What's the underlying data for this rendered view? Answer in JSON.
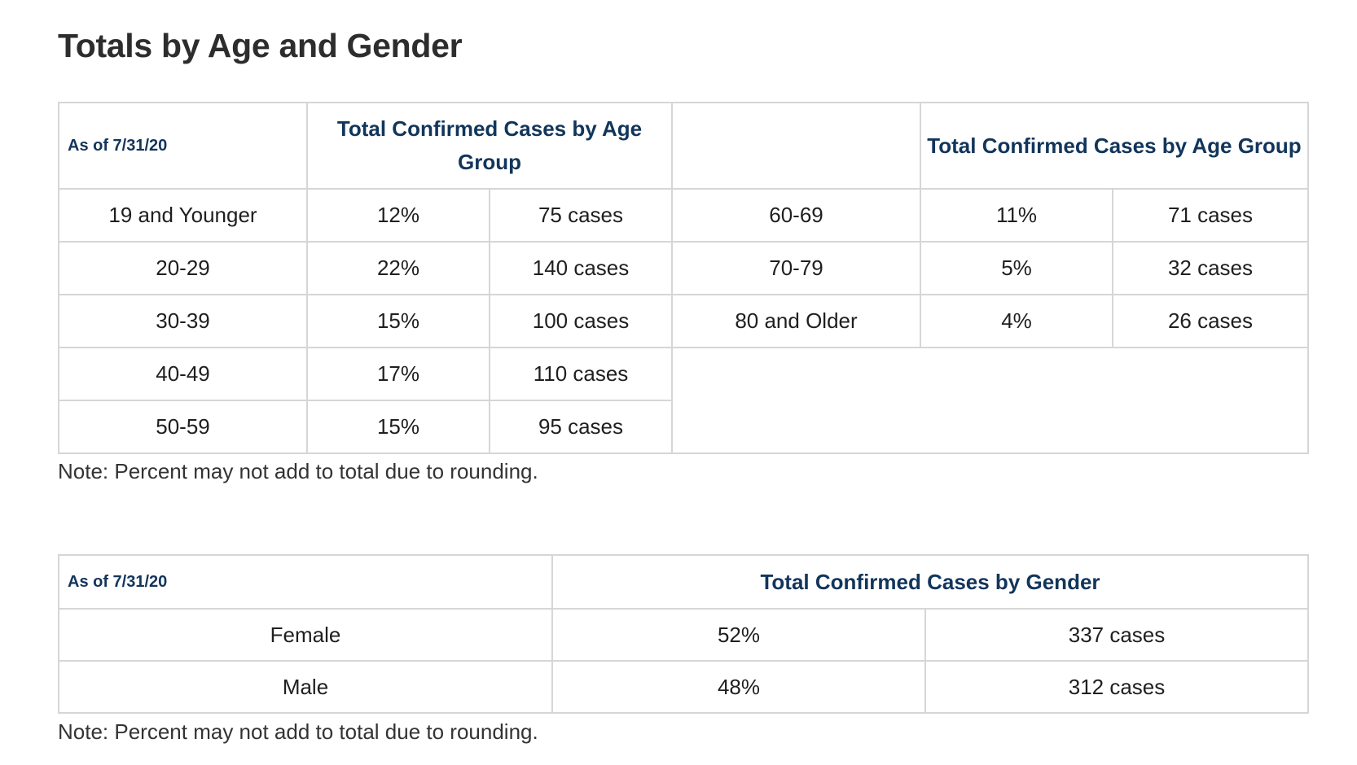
{
  "page": {
    "title": "Totals by Age and Gender"
  },
  "age_table": {
    "as_of": "As of 7/31/20",
    "left_header": "Total Confirmed Cases by Age Group",
    "right_header": "Total Confirmed Cases by Age Group",
    "left_rows": [
      {
        "group": "19 and Younger",
        "percent": "12%",
        "cases": "75 cases"
      },
      {
        "group": "20-29",
        "percent": "22%",
        "cases": "140 cases"
      },
      {
        "group": "30-39",
        "percent": "15%",
        "cases": "100 cases"
      },
      {
        "group": "40-49",
        "percent": "17%",
        "cases": "110 cases"
      },
      {
        "group": "50-59",
        "percent": "15%",
        "cases": "95 cases"
      }
    ],
    "right_rows": [
      {
        "group": "60-69",
        "percent": "11%",
        "cases": "71 cases"
      },
      {
        "group": "70-79",
        "percent": "5%",
        "cases": "32 cases"
      },
      {
        "group": "80 and Older",
        "percent": "4%",
        "cases": "26 cases"
      }
    ],
    "note": "Note: Percent may not add to total due to rounding."
  },
  "gender_table": {
    "as_of": "As of 7/31/20",
    "header": "Total Confirmed Cases by Gender",
    "rows": [
      {
        "gender": "Female",
        "percent": "52%",
        "cases": "337 cases"
      },
      {
        "gender": "Male",
        "percent": "48%",
        "cases": "312 cases"
      }
    ],
    "note": "Note: Percent may not add to total due to rounding."
  },
  "colors": {
    "header_text": "#12355b",
    "border": "#d6d6d6",
    "title": "#2d2d2d"
  }
}
